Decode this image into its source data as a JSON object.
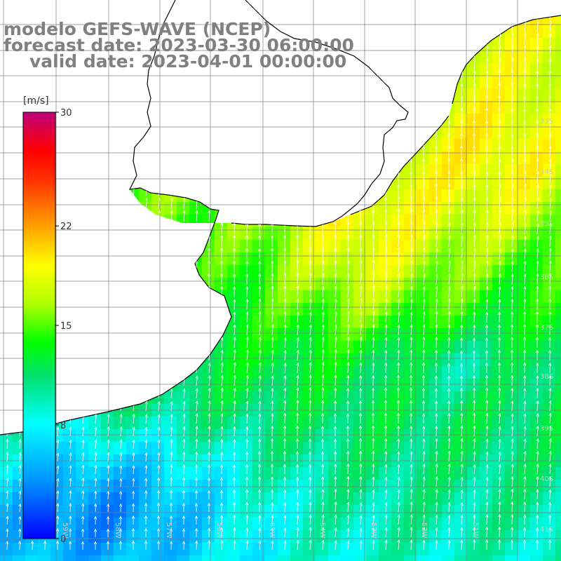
{
  "title": {
    "line1": "modelo GEFS-WAVE (NCEP)",
    "line2": "forecast date: 2023-03-30 06:00:00",
    "line3": "valid date: 2023-04-01 00:00:00"
  },
  "colorbar": {
    "unit": "[m/s]",
    "min": 0,
    "max": 30,
    "ticks": [
      "30",
      "22",
      "15",
      "8",
      "0"
    ],
    "tick_values": [
      30,
      22,
      15,
      8,
      0
    ],
    "colors": [
      "#0000ff",
      "#0090ff",
      "#00ffff",
      "#00e070",
      "#00ff00",
      "#b0ff00",
      "#ffff00",
      "#ff9900",
      "#ff3300",
      "#ff0000",
      "#c0007a"
    ]
  },
  "lat_labels": [
    "33S",
    "34S",
    "35S",
    "36S",
    "37S",
    "38S",
    "39S",
    "40S",
    "41S"
  ],
  "lon_labels": [
    "59W",
    "58W",
    "57W",
    "56W",
    "55W",
    "54W",
    "53W",
    "52W",
    "51W"
  ],
  "colors": {
    "land": "#ffffff",
    "coast": "#000000",
    "grid": "#808080",
    "arrow": "#ffffff"
  }
}
